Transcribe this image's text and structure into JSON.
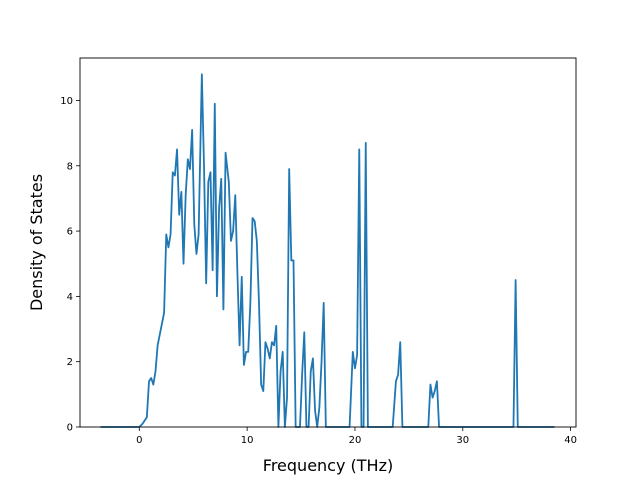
{
  "chart_data": {
    "type": "line",
    "title": "",
    "xlabel": "Frequency (THz)",
    "ylabel": "Density of States",
    "xlim": [
      -5.5,
      40.5
    ],
    "ylim": [
      0,
      11.3
    ],
    "xticks": [
      0,
      10,
      20,
      30,
      40
    ],
    "yticks": [
      0,
      2,
      4,
      6,
      8,
      10
    ],
    "grid": false,
    "legend": "none",
    "series": [
      {
        "color": "#1f77b4",
        "x": [
          -3.6,
          0.0,
          0.3,
          0.7,
          0.9,
          1.1,
          1.3,
          1.5,
          1.7,
          2.0,
          2.3,
          2.5,
          2.7,
          2.9,
          3.1,
          3.3,
          3.5,
          3.7,
          3.9,
          4.1,
          4.3,
          4.5,
          4.7,
          4.9,
          5.1,
          5.3,
          5.5,
          5.8,
          6.0,
          6.2,
          6.4,
          6.6,
          6.8,
          7.0,
          7.2,
          7.4,
          7.6,
          7.8,
          8.0,
          8.3,
          8.5,
          8.7,
          8.9,
          9.1,
          9.3,
          9.5,
          9.7,
          9.9,
          10.1,
          10.3,
          10.5,
          10.7,
          10.9,
          11.1,
          11.3,
          11.5,
          11.7,
          11.9,
          12.1,
          12.3,
          12.5,
          12.7,
          12.9,
          13.1,
          13.3,
          13.5,
          13.7,
          13.9,
          14.1,
          14.3,
          14.5,
          14.7,
          14.9,
          15.1,
          15.3,
          15.5,
          15.7,
          15.9,
          16.1,
          16.3,
          16.5,
          16.7,
          16.9,
          17.1,
          17.3,
          17.5,
          17.7,
          17.9,
          19.5,
          19.8,
          20.0,
          20.2,
          20.4,
          20.6,
          20.8,
          21.0,
          21.2,
          21.4,
          21.6,
          23.5,
          23.8,
          24.0,
          24.2,
          24.4,
          24.6,
          26.8,
          27.0,
          27.2,
          27.4,
          27.6,
          27.8,
          34.5,
          34.7,
          34.9,
          35.1,
          35.3,
          38.5
        ],
        "y": [
          0.0,
          0.0,
          0.1,
          0.3,
          1.4,
          1.5,
          1.3,
          1.7,
          2.5,
          3.0,
          3.5,
          5.9,
          5.5,
          5.9,
          7.8,
          7.7,
          8.5,
          6.5,
          7.2,
          5.0,
          7.1,
          8.2,
          7.9,
          9.1,
          6.2,
          5.3,
          5.9,
          10.8,
          8.0,
          4.4,
          7.5,
          7.8,
          4.8,
          9.9,
          4.0,
          6.7,
          7.6,
          3.6,
          8.4,
          7.5,
          5.7,
          6.0,
          7.1,
          4.7,
          2.5,
          4.6,
          1.9,
          2.3,
          2.3,
          3.8,
          6.4,
          6.3,
          5.7,
          3.8,
          1.3,
          1.1,
          2.6,
          2.4,
          2.1,
          2.6,
          2.5,
          3.1,
          0.0,
          1.7,
          2.3,
          0.0,
          0.9,
          7.9,
          5.1,
          5.1,
          0.0,
          0.0,
          0.0,
          1.6,
          2.9,
          0.0,
          0.0,
          1.7,
          2.1,
          0.5,
          0.0,
          0.6,
          2.0,
          3.8,
          0.0,
          0.0,
          0.0,
          0.0,
          0.0,
          2.3,
          1.8,
          2.2,
          8.5,
          0.0,
          0.0,
          8.7,
          0.0,
          0.0,
          0.0,
          0.0,
          1.4,
          1.6,
          2.6,
          0.0,
          0.0,
          0.0,
          1.3,
          0.9,
          1.1,
          1.4,
          0.0,
          0.0,
          0.0,
          4.5,
          0.0,
          0.0,
          0.0
        ]
      }
    ]
  }
}
